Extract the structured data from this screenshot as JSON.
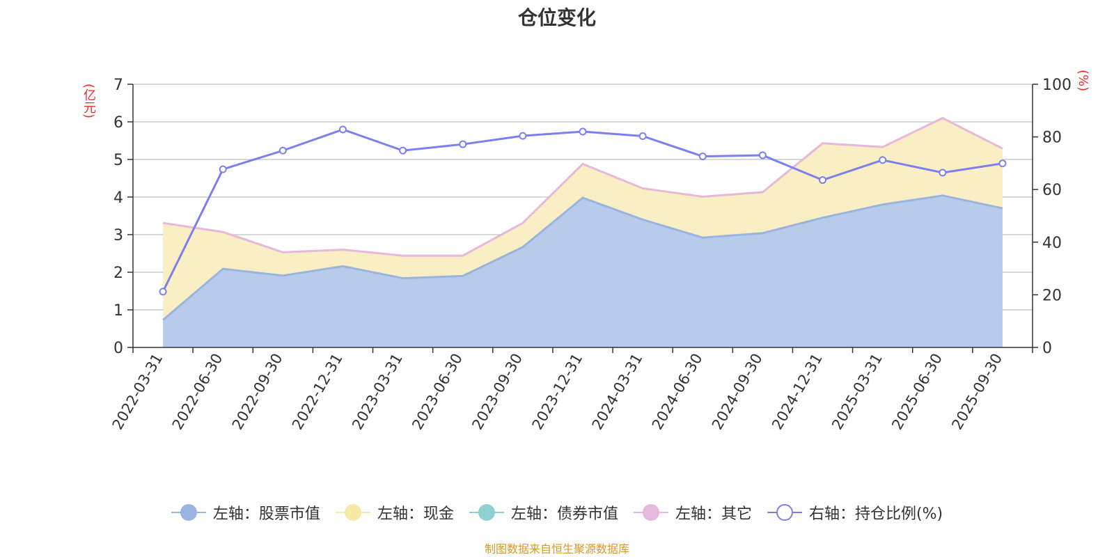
{
  "title": "仓位变化",
  "source": "制图数据来自恒生聚源数据库",
  "axis_units": {
    "left": "(亿元)",
    "right": "(%)"
  },
  "colors": {
    "stock": "#9ab4e0",
    "stock_fill": "#b8cbea",
    "cash": "#f8e8a8",
    "cash_fill": "#faefc4",
    "bond": "#8fd0d0",
    "other": "#e6b8dc",
    "ratio": "#7b7ff0",
    "axis": "#333333",
    "grid": "#cccccc"
  },
  "chart_data": {
    "type": "area",
    "title": "仓位变化",
    "categories": [
      "2022-03-31",
      "2022-06-30",
      "2022-09-30",
      "2022-12-31",
      "2023-03-31",
      "2023-06-30",
      "2023-09-30",
      "2023-12-31",
      "2024-03-31",
      "2024-06-30",
      "2024-09-30",
      "2024-12-31",
      "2025-03-31",
      "2025-06-30",
      "2025-09-30"
    ],
    "left_axis": {
      "min": 0,
      "max": 7,
      "ticks": [
        0,
        1,
        2,
        3,
        4,
        5,
        6,
        7
      ]
    },
    "right_axis": {
      "min": 0,
      "max": 100,
      "ticks": [
        0,
        20,
        40,
        60,
        80,
        100
      ]
    },
    "grid": true,
    "legend_position": "bottom",
    "series": [
      {
        "name": "左轴：股票市值",
        "axis": "left",
        "kind": "area",
        "values": [
          0.73,
          2.09,
          1.91,
          2.16,
          1.84,
          1.9,
          2.67,
          3.98,
          3.4,
          2.92,
          3.04,
          3.45,
          3.8,
          4.04,
          3.7
        ]
      },
      {
        "name": "左轴：现金",
        "axis": "left",
        "kind": "area",
        "values": [
          2.58,
          0.98,
          0.62,
          0.44,
          0.6,
          0.54,
          0.64,
          0.9,
          0.83,
          1.09,
          1.09,
          1.98,
          1.53,
          2.06,
          1.59
        ]
      },
      {
        "name": "左轴：债券市值",
        "axis": "left",
        "kind": "area",
        "values": [
          0,
          0,
          0,
          0,
          0,
          0,
          0,
          0,
          0,
          0,
          0,
          0,
          0,
          0,
          0
        ]
      },
      {
        "name": "左轴：其它",
        "axis": "left",
        "kind": "area",
        "values": [
          0,
          0,
          0,
          0,
          0,
          0,
          0,
          0,
          0,
          0,
          0,
          0,
          0,
          0,
          0
        ]
      },
      {
        "name": "右轴：持仓比例(%)",
        "axis": "right",
        "kind": "line",
        "values": [
          21.2,
          67.7,
          74.8,
          82.8,
          74.8,
          77.2,
          80.4,
          82.0,
          80.3,
          72.6,
          73.0,
          63.6,
          71.2,
          66.4,
          69.9
        ]
      }
    ]
  }
}
